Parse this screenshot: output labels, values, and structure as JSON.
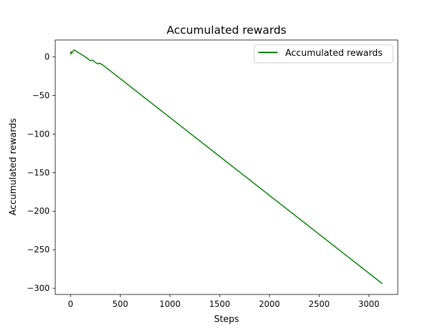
{
  "chart_data": {
    "type": "line",
    "title": "Accumulated rewards",
    "xlabel": "Steps",
    "ylabel": "Accumulated rewards",
    "xlim": [
      -154,
      3291
    ],
    "ylim": [
      -308,
      22
    ],
    "xticks": [
      0,
      500,
      1000,
      1500,
      2000,
      2500,
      3000
    ],
    "yticks": [
      0,
      -50,
      -100,
      -150,
      -200,
      -250,
      -300
    ],
    "xtick_labels": [
      "0",
      "500",
      "1000",
      "1500",
      "2000",
      "2500",
      "3000"
    ],
    "ytick_labels": [
      "0",
      "−50",
      "−100",
      "−150",
      "−200",
      "−250",
      "−300"
    ],
    "grid": false,
    "legend": {
      "position": "top-right",
      "entries": [
        "Accumulated rewards"
      ]
    },
    "series": [
      {
        "name": "Accumulated rewards",
        "color": "#008000",
        "x": [
          0,
          5,
          10,
          20,
          30,
          40,
          60,
          100,
          150,
          200,
          220,
          260,
          275,
          290,
          320,
          3135
        ],
        "y": [
          3,
          7,
          5,
          6,
          9,
          9,
          7,
          4,
          0,
          -5,
          -4,
          -8,
          -9,
          -8,
          -10,
          -294
        ]
      }
    ]
  }
}
